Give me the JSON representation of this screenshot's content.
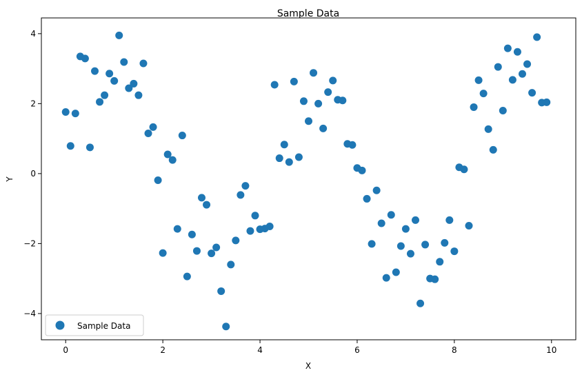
{
  "chart_data": {
    "type": "scatter",
    "title": "Sample Data",
    "xlabel": "X",
    "ylabel": "Y",
    "xlim": [
      -0.5,
      10.5
    ],
    "ylim": [
      -4.75,
      4.45
    ],
    "xticks": [
      0,
      2,
      4,
      6,
      8,
      10
    ],
    "yticks": [
      -4,
      -2,
      0,
      2,
      4
    ],
    "xtick_labels": [
      "0",
      "2",
      "4",
      "6",
      "8",
      "10"
    ],
    "ytick_labels": [
      "−4",
      "−2",
      "0",
      "2",
      "4"
    ],
    "grid": false,
    "legend_position": "lower-left",
    "series": [
      {
        "name": "Sample Data",
        "color": "#1f77b4",
        "points": [
          [
            0.0,
            1.76
          ],
          [
            0.1,
            0.79
          ],
          [
            0.2,
            1.72
          ],
          [
            0.3,
            3.35
          ],
          [
            0.4,
            3.29
          ],
          [
            0.5,
            0.75
          ],
          [
            0.6,
            2.93
          ],
          [
            0.7,
            2.05
          ],
          [
            0.8,
            2.24
          ],
          [
            0.9,
            2.86
          ],
          [
            1.0,
            2.65
          ],
          [
            1.1,
            3.95
          ],
          [
            1.2,
            3.19
          ],
          [
            1.3,
            2.44
          ],
          [
            1.4,
            2.57
          ],
          [
            1.5,
            2.24
          ],
          [
            1.6,
            3.15
          ],
          [
            1.7,
            1.15
          ],
          [
            1.8,
            1.33
          ],
          [
            1.9,
            -0.19
          ],
          [
            2.0,
            -2.27
          ],
          [
            2.1,
            0.55
          ],
          [
            2.2,
            0.39
          ],
          [
            2.3,
            -1.58
          ],
          [
            2.4,
            1.09
          ],
          [
            2.5,
            -2.94
          ],
          [
            2.6,
            -1.74
          ],
          [
            2.7,
            -2.21
          ],
          [
            2.8,
            -0.69
          ],
          [
            2.9,
            -0.89
          ],
          [
            3.0,
            -2.28
          ],
          [
            3.1,
            -2.11
          ],
          [
            3.2,
            -3.36
          ],
          [
            3.3,
            -4.37
          ],
          [
            3.4,
            -2.6
          ],
          [
            3.5,
            -1.91
          ],
          [
            3.6,
            -0.61
          ],
          [
            3.7,
            -0.35
          ],
          [
            3.8,
            -1.64
          ],
          [
            3.9,
            -1.2
          ],
          [
            4.0,
            -1.59
          ],
          [
            4.1,
            -1.57
          ],
          [
            4.2,
            -1.51
          ],
          [
            4.3,
            2.54
          ],
          [
            4.4,
            0.44
          ],
          [
            4.5,
            0.83
          ],
          [
            4.6,
            0.33
          ],
          [
            4.7,
            2.63
          ],
          [
            4.8,
            0.47
          ],
          [
            4.9,
            2.07
          ],
          [
            5.0,
            1.5
          ],
          [
            5.1,
            2.88
          ],
          [
            5.2,
            2.0
          ],
          [
            5.3,
            1.29
          ],
          [
            5.4,
            2.33
          ],
          [
            5.5,
            2.66
          ],
          [
            5.6,
            2.11
          ],
          [
            5.7,
            2.09
          ],
          [
            5.8,
            0.85
          ],
          [
            5.9,
            0.82
          ],
          [
            6.0,
            0.16
          ],
          [
            6.1,
            0.09
          ],
          [
            6.2,
            -0.72
          ],
          [
            6.3,
            -2.01
          ],
          [
            6.4,
            -0.48
          ],
          [
            6.5,
            -1.42
          ],
          [
            6.6,
            -2.98
          ],
          [
            6.7,
            -1.18
          ],
          [
            6.8,
            -2.82
          ],
          [
            6.9,
            -2.07
          ],
          [
            7.0,
            -1.58
          ],
          [
            7.1,
            -2.29
          ],
          [
            7.2,
            -1.33
          ],
          [
            7.3,
            -3.71
          ],
          [
            7.4,
            -2.03
          ],
          [
            7.5,
            -3.0
          ],
          [
            7.6,
            -3.02
          ],
          [
            7.7,
            -2.52
          ],
          [
            7.8,
            -1.98
          ],
          [
            7.9,
            -1.33
          ],
          [
            8.0,
            -2.22
          ],
          [
            8.1,
            0.18
          ],
          [
            8.2,
            0.12
          ],
          [
            8.3,
            -1.49
          ],
          [
            8.4,
            1.9
          ],
          [
            8.5,
            2.67
          ],
          [
            8.6,
            2.29
          ],
          [
            8.7,
            1.27
          ],
          [
            8.8,
            0.68
          ],
          [
            8.9,
            3.05
          ],
          [
            9.0,
            1.8
          ],
          [
            9.1,
            3.58
          ],
          [
            9.2,
            2.68
          ],
          [
            9.3,
            3.48
          ],
          [
            9.4,
            2.85
          ],
          [
            9.5,
            3.13
          ],
          [
            9.6,
            2.31
          ],
          [
            9.7,
            3.9
          ],
          [
            9.8,
            2.03
          ],
          [
            9.9,
            2.04
          ]
        ]
      }
    ]
  }
}
